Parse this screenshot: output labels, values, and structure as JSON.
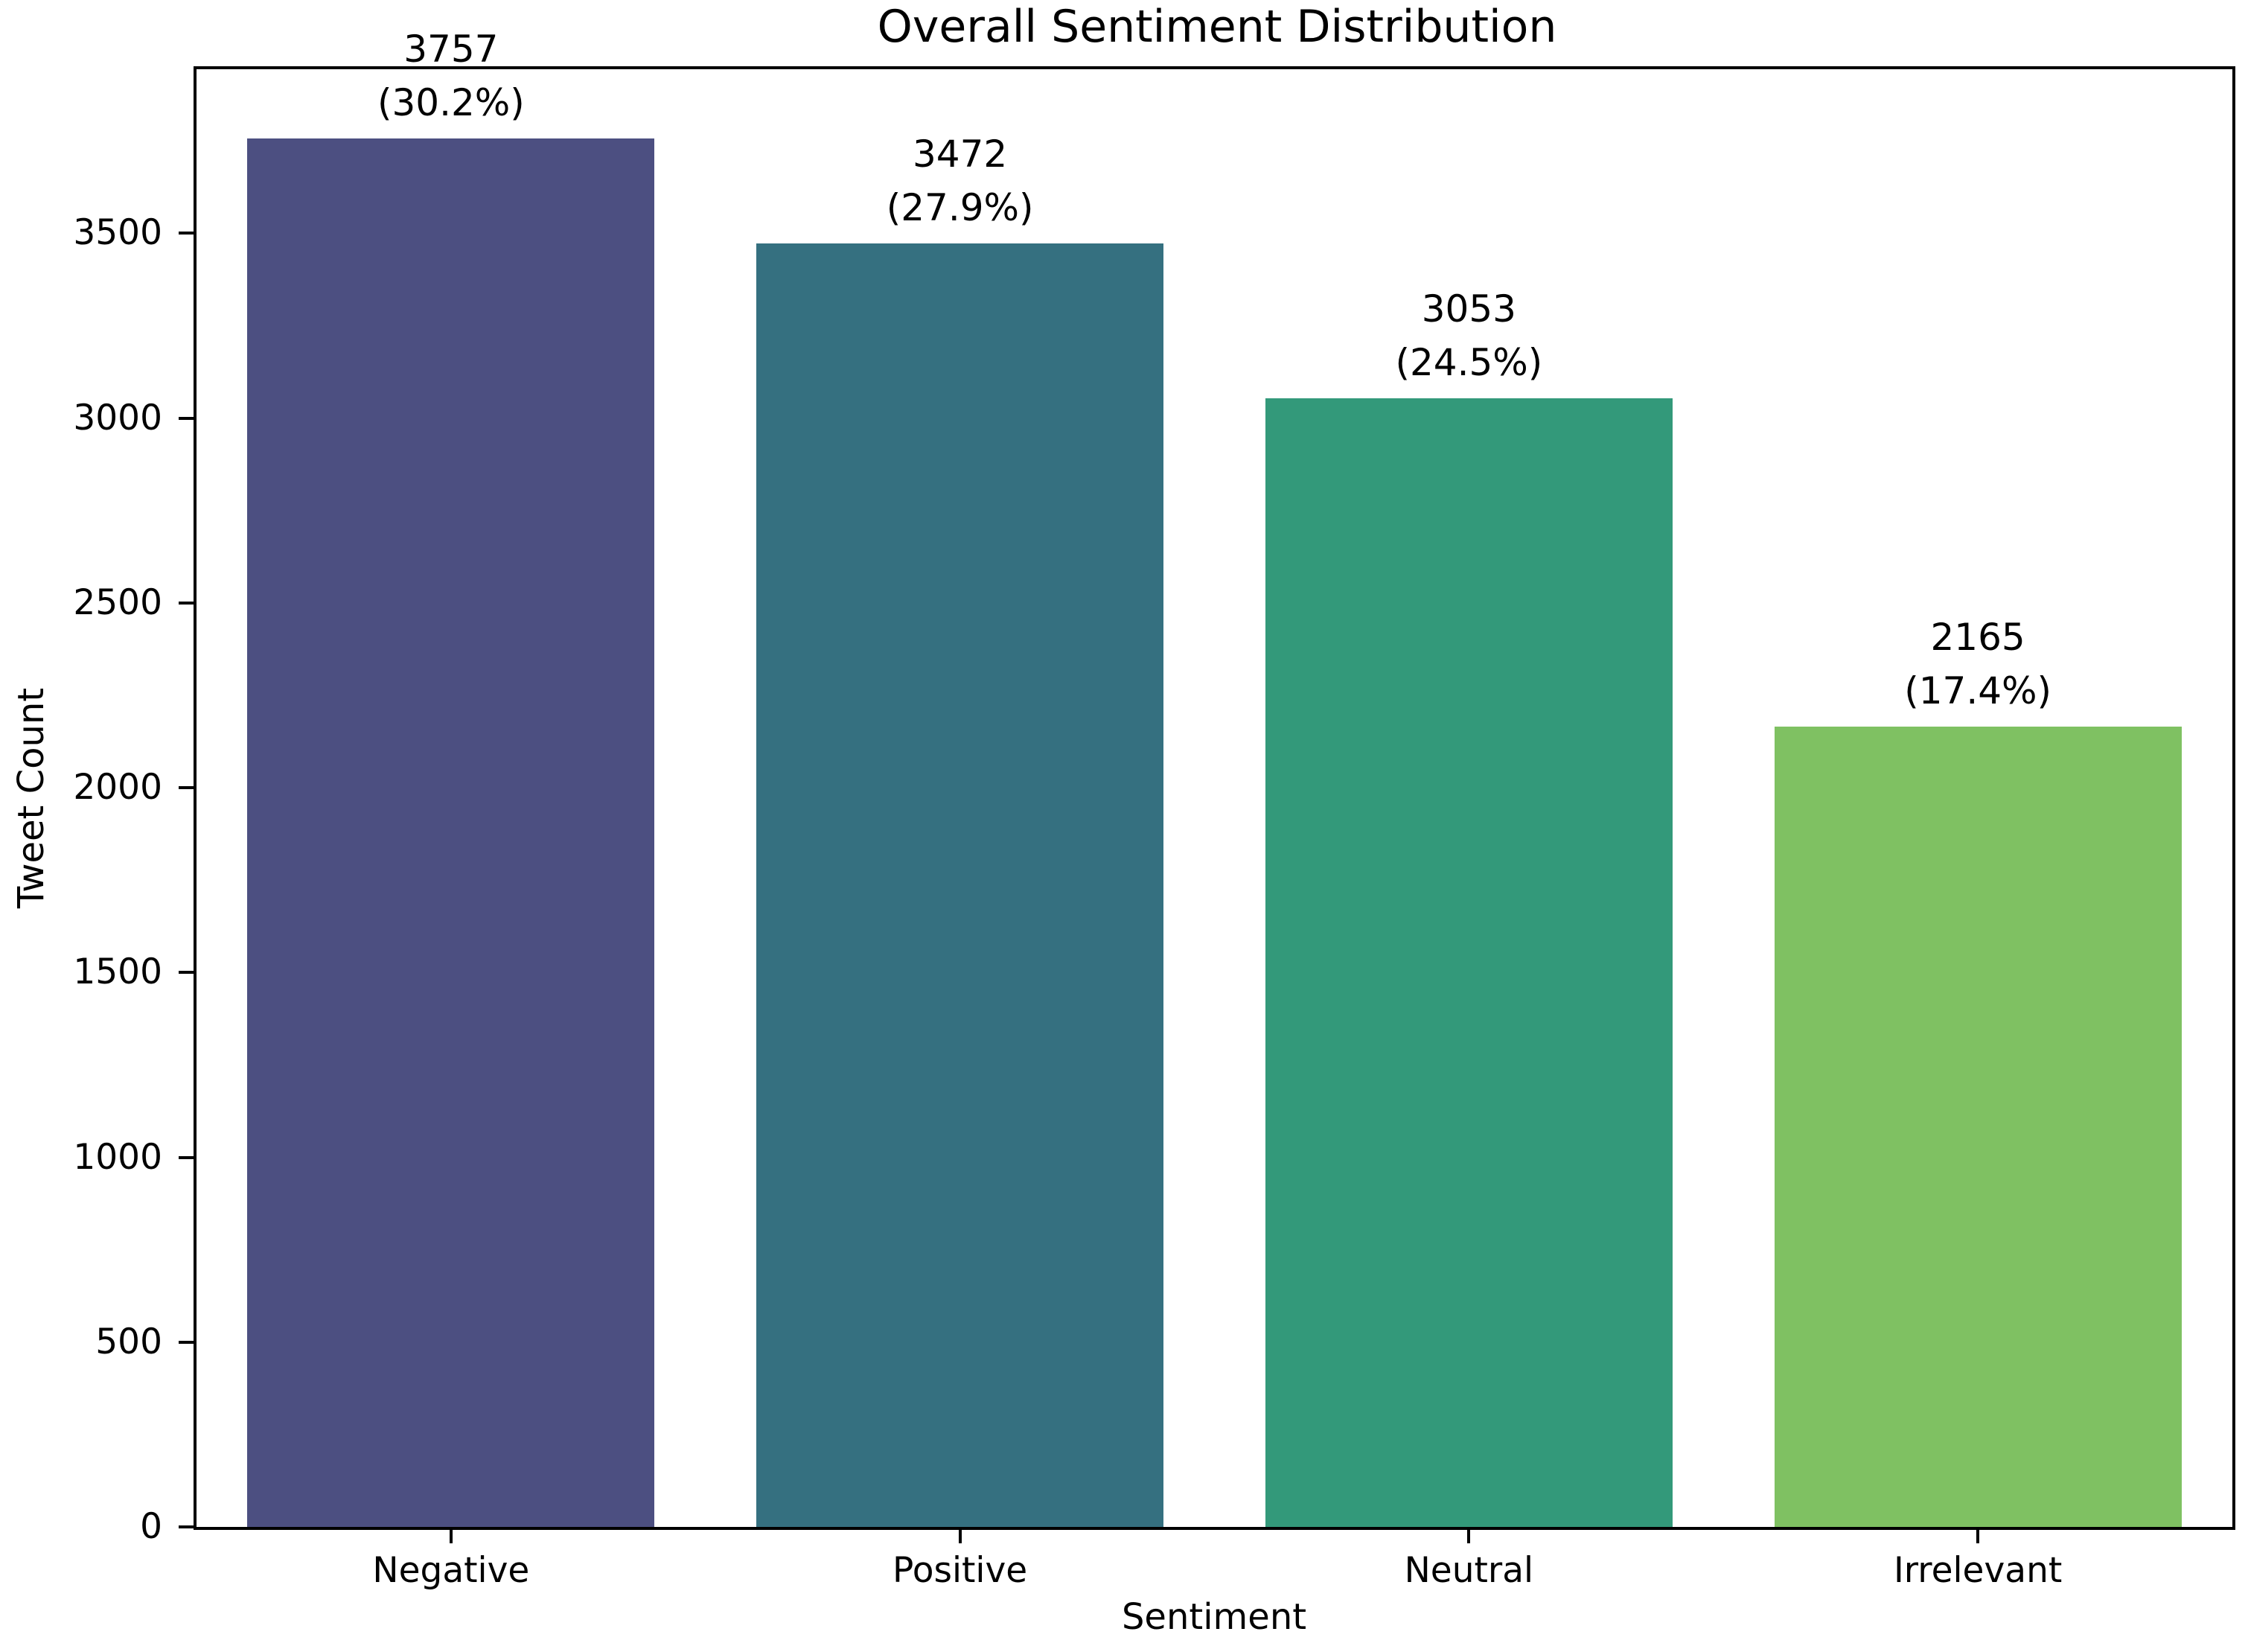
{
  "figure": {
    "background": "#ffffff",
    "text_color": "#000000",
    "spine_color": "#000000"
  },
  "chart_data": {
    "type": "bar",
    "title": "Overall Sentiment Distribution",
    "xlabel": "Sentiment",
    "ylabel": "Tweet Count",
    "categories": [
      "Negative",
      "Positive",
      "Neutral",
      "Irrelevant"
    ],
    "values": [
      3757,
      3472,
      3053,
      2165
    ],
    "value_labels": [
      "3757",
      "3472",
      "3053",
      "2165"
    ],
    "percent_labels": [
      "(30.2%)",
      "(27.9%)",
      "(24.5%)",
      "(17.4%)"
    ],
    "bar_colors": [
      "#4C4F81",
      "#357080",
      "#33997A",
      "#7FC162"
    ],
    "ylim": [
      0,
      3944
    ],
    "yticks": [
      0,
      500,
      1000,
      1500,
      2000,
      2500,
      3000,
      3500
    ],
    "grid": false,
    "legend": null,
    "bar_width_fraction": 0.8
  }
}
